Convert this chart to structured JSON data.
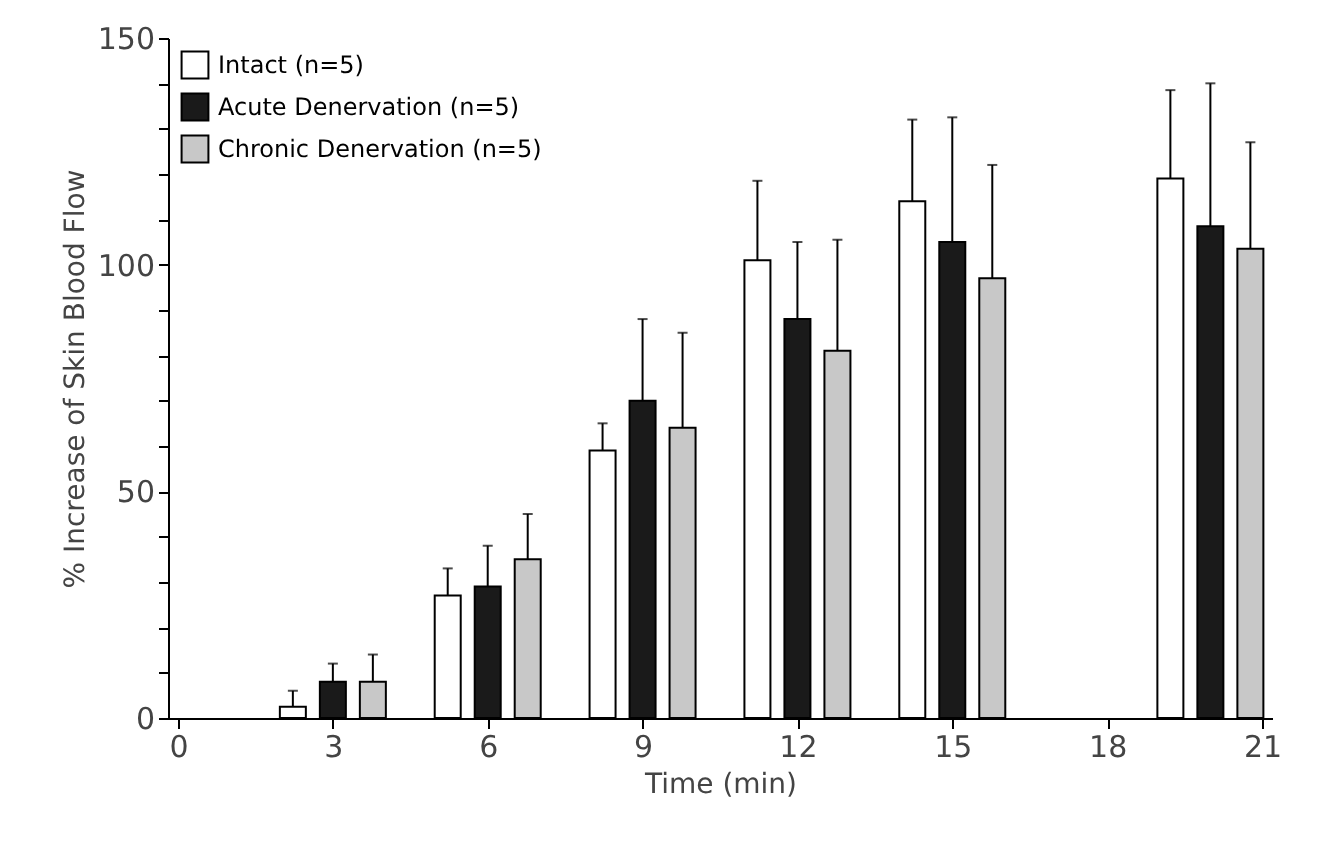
{
  "chart_data": {
    "type": "bar",
    "xlabel": "Time (min)",
    "ylabel": "% Increase of Skin Blood Flow",
    "x": [
      3,
      6,
      9,
      12,
      15,
      20
    ],
    "series": [
      {
        "name": "Intact (n=5)",
        "color": "#ffffff",
        "values": [
          2.5,
          27,
          59,
          101,
          114,
          119
        ],
        "errors": [
          [
            2.5,
            6
          ],
          [
            27,
            33
          ],
          [
            59,
            65
          ],
          [
            101,
            118.5
          ],
          [
            114,
            132
          ],
          [
            119,
            138.5
          ]
        ]
      },
      {
        "name": "Acute Denervation (n=5)",
        "color": "#1a1a1a",
        "values": [
          8,
          29,
          70,
          88,
          105,
          108.5
        ],
        "errors": [
          [
            8,
            12
          ],
          [
            29,
            38
          ],
          [
            70,
            88
          ],
          [
            88,
            105
          ],
          [
            105,
            132.5
          ],
          [
            108.5,
            140
          ]
        ]
      },
      {
        "name": "Chronic Denervation (n=5)",
        "color": "#c8c8c8",
        "values": [
          8,
          35,
          64,
          81,
          97,
          103.5
        ],
        "errors": [
          [
            8,
            14
          ],
          [
            35,
            45
          ],
          [
            64,
            85
          ],
          [
            81,
            105.5
          ],
          [
            97,
            122
          ],
          [
            103.5,
            127
          ]
        ]
      }
    ],
    "xlim": [
      0,
      21
    ],
    "xticks": [
      0,
      3,
      6,
      9,
      12,
      15,
      18,
      21
    ],
    "ylim": [
      0,
      150
    ],
    "yticks": [
      0,
      {
        "value": 10,
        "label": null
      },
      {
        "value": 20,
        "label": null
      },
      {
        "value": 30,
        "label": null
      },
      {
        "value": 40,
        "label": null
      },
      50,
      {
        "value": 60,
        "label": null
      },
      {
        "value": 70,
        "label": null
      },
      {
        "value": 80,
        "label": null
      },
      {
        "value": 90,
        "label": null
      },
      100,
      {
        "value": 110,
        "label": null
      },
      {
        "value": 120,
        "label": null
      },
      {
        "value": 130,
        "label": null
      },
      {
        "value": 140,
        "label": null
      },
      150
    ],
    "grid": false,
    "legend": "top left"
  }
}
